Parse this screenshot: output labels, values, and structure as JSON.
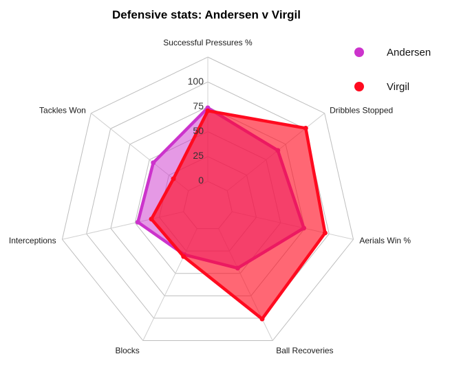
{
  "chart_data": {
    "type": "radar",
    "title": "Defensive stats: Andersen v Virgil",
    "axes": [
      "Successful Pressures %",
      "Dribbles Stopped",
      "Aerials Win %",
      "Ball Recoveries",
      "Blocks",
      "Interceptions",
      "Tackles Won"
    ],
    "ticks": [
      "0",
      "25",
      "50",
      "75",
      "100"
    ],
    "range": [
      0,
      100
    ],
    "grid_levels": 6,
    "series": [
      {
        "name": "Andersen",
        "color": "#cc33cc",
        "values": [
          73,
          64,
          73,
          43,
          28,
          46,
          44
        ]
      },
      {
        "name": "Virgil",
        "color": "#ff0a1f",
        "values": [
          70,
          100,
          95,
          100,
          30,
          32,
          18
        ]
      }
    ],
    "legend_position": "top-right"
  }
}
